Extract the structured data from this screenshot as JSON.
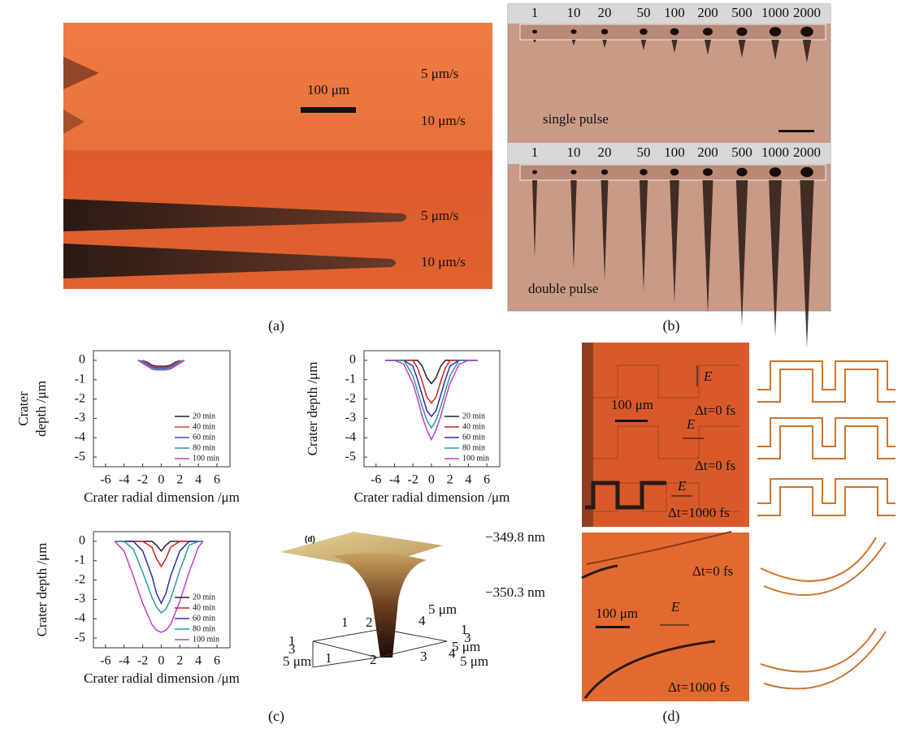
{
  "panel_a": {
    "scale_bar": "100 μm",
    "speed_labels": [
      "5 μm/s",
      "10 μm/s",
      "5 μm/s",
      "10 μm/s"
    ],
    "caption": "(a)"
  },
  "panel_b": {
    "pulse_counts_top": [
      "1",
      "10",
      "20",
      "50",
      "100",
      "200",
      "500",
      "1000",
      "2000"
    ],
    "pulse_counts_bottom": [
      "1",
      "10",
      "20",
      "50",
      "100",
      "200",
      "500",
      "1000",
      "2000"
    ],
    "top_label": "single pulse",
    "bottom_label": "double pulse",
    "caption": "(b)"
  },
  "chart_data": [
    {
      "type": "line",
      "xlabel": "Crater radial dimension /μm",
      "ylabel_lines": [
        "Crater",
        "depth /μm"
      ],
      "x": [
        -2.5,
        -2,
        -1.5,
        -1,
        -0.5,
        0,
        0.5,
        1,
        1.5,
        2,
        2.5
      ],
      "series": [
        {
          "name": "20 min",
          "color": "#222222",
          "values": [
            null,
            0,
            -0.1,
            -0.25,
            -0.3,
            -0.3,
            -0.3,
            -0.25,
            -0.1,
            0,
            null
          ]
        },
        {
          "name": "40 min",
          "color": "#d94040",
          "values": [
            null,
            0,
            -0.15,
            -0.3,
            -0.35,
            -0.35,
            -0.35,
            -0.3,
            -0.15,
            0,
            null
          ]
        },
        {
          "name": "60 min",
          "color": "#4a4ad0",
          "values": [
            0,
            -0.05,
            -0.2,
            -0.35,
            -0.4,
            -0.4,
            -0.4,
            -0.35,
            -0.2,
            -0.05,
            0
          ]
        },
        {
          "name": "80 min",
          "color": "#2a9a9a",
          "values": [
            0,
            -0.1,
            -0.25,
            -0.4,
            -0.45,
            -0.45,
            -0.45,
            -0.4,
            -0.25,
            -0.1,
            0
          ]
        },
        {
          "name": "100 min",
          "color": "#c040c0",
          "values": [
            0,
            -0.15,
            -0.3,
            -0.45,
            -0.5,
            -0.5,
            -0.5,
            -0.45,
            -0.3,
            -0.15,
            0
          ]
        }
      ],
      "xlim": [
        -7.3,
        7.4
      ],
      "ylim": [
        -5.5,
        0.5
      ],
      "xticks": [
        -6,
        -4,
        -2,
        0,
        2,
        4,
        6
      ],
      "yticks": [
        0,
        -1,
        -2,
        -3,
        -4,
        -5
      ],
      "legend": "lower right"
    },
    {
      "type": "line",
      "xlabel": "Crater radial dimension /μm",
      "ylabel": "Crater depth /μm",
      "x": [
        -5,
        -4,
        -3,
        -2,
        -1.5,
        -1,
        -0.5,
        0,
        0.5,
        1,
        1.5,
        2,
        3,
        4,
        5
      ],
      "series": [
        {
          "name": "20 min",
          "color": "#222222",
          "values": [
            0,
            0,
            0,
            0,
            0,
            -0.3,
            -0.9,
            -1.2,
            -0.9,
            -0.3,
            0,
            0,
            0,
            0,
            0
          ]
        },
        {
          "name": "40 min",
          "color": "#d02020",
          "values": [
            0,
            0,
            0,
            0,
            -0.4,
            -1.1,
            -1.9,
            -2.2,
            -1.9,
            -1.1,
            -0.4,
            0,
            0,
            0,
            0
          ]
        },
        {
          "name": "60 min",
          "color": "#2a2ab0",
          "values": [
            0,
            0,
            0,
            -0.3,
            -1,
            -1.8,
            -2.6,
            -2.9,
            -2.6,
            -1.8,
            -1,
            -0.3,
            0,
            0,
            0
          ]
        },
        {
          "name": "80 min",
          "color": "#2a9a9a",
          "values": [
            0,
            0,
            0,
            -0.8,
            -1.6,
            -2.4,
            -3.1,
            -3.5,
            -3.1,
            -2.4,
            -1.6,
            -0.8,
            0,
            0,
            0
          ]
        },
        {
          "name": "100 min",
          "color": "#c040c0",
          "values": [
            0,
            0,
            -0.2,
            -1.2,
            -2,
            -2.9,
            -3.6,
            -4.1,
            -3.6,
            -2.9,
            -2,
            -1.2,
            -0.2,
            0,
            0
          ]
        }
      ],
      "xlim": [
        -7.3,
        7.4
      ],
      "ylim": [
        -5.5,
        0.5
      ],
      "xticks": [
        -6,
        -4,
        -2,
        0,
        2,
        4,
        6
      ],
      "yticks": [
        0,
        -1,
        -2,
        -3,
        -4,
        -5
      ],
      "legend": "lower right"
    },
    {
      "type": "line",
      "xlabel": "Crater radial dimension /μm",
      "ylabel": "Crater depth /μm",
      "x": [
        -5,
        -4,
        -3,
        -2,
        -1,
        -0.5,
        0,
        0.5,
        1,
        2,
        3,
        4,
        4.5
      ],
      "series": [
        {
          "name": "20 min",
          "color": "#222222",
          "values": [
            0,
            0,
            0,
            0,
            0,
            -0.2,
            -0.5,
            -0.2,
            0,
            0,
            0,
            0,
            0
          ]
        },
        {
          "name": "40 min",
          "color": "#d02020",
          "values": [
            0,
            0,
            0,
            0,
            -0.3,
            -0.9,
            -1.3,
            -0.9,
            -0.3,
            0,
            0,
            0,
            0
          ]
        },
        {
          "name": "60 min",
          "color": "#2a2ab0",
          "values": [
            0,
            0,
            0,
            -0.5,
            -1.8,
            -2.7,
            -3.2,
            -2.7,
            -1.8,
            -0.5,
            0,
            0,
            0
          ]
        },
        {
          "name": "80 min",
          "color": "#2a9a9a",
          "values": [
            0,
            0,
            -0.4,
            -1.6,
            -2.9,
            -3.4,
            -3.7,
            -3.5,
            -3,
            -1.5,
            -0.2,
            0,
            0
          ]
        },
        {
          "name": "100 min",
          "color": "#c040c0",
          "values": [
            0,
            -0.5,
            -1.8,
            -3.2,
            -4.3,
            -4.6,
            -4.7,
            -4.6,
            -4.3,
            -3.1,
            -1.6,
            -0.3,
            0
          ]
        }
      ],
      "xlim": [
        -7.3,
        7.4
      ],
      "ylim": [
        -5.5,
        0.5
      ],
      "xticks": [
        -6,
        -4,
        -2,
        0,
        2,
        4,
        6
      ],
      "yticks": [
        0,
        -1,
        -2,
        -3,
        -4,
        -5
      ],
      "legend": "lower right"
    }
  ],
  "surface_plot": {
    "tag": "(d)",
    "z_labels": [
      "−349.8 nm",
      "−350.3 nm"
    ],
    "back_axis": [
      "1",
      "2",
      "4",
      "5 μm",
      "1",
      "3",
      "5 μm"
    ],
    "front_axis": [
      "1",
      "3",
      "5 μm",
      "1",
      "2",
      "3",
      "4",
      "5 μm"
    ]
  },
  "panel_c_caption": "(c)",
  "panel_d": {
    "top_image": {
      "field": [
        "E",
        "E",
        "E"
      ],
      "scale_bar": "100 μm",
      "delays": [
        "Δt=0 fs",
        "Δt=0 fs",
        "Δt=1000 fs"
      ]
    },
    "bottom_image": {
      "field": "E",
      "scale_bar": "100 μm",
      "delays": [
        "Δt=0 fs",
        "Δt=1000 fs"
      ]
    },
    "caption": "(d)"
  }
}
